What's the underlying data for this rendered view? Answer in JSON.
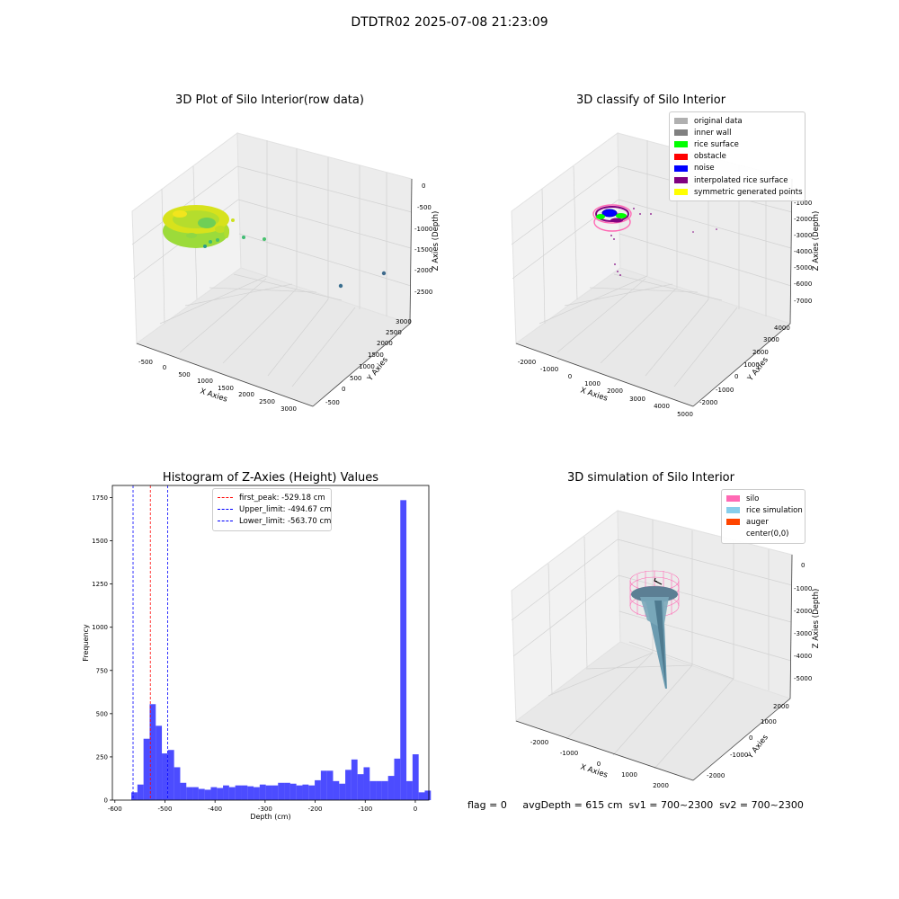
{
  "suptitle": "DTDTR02 2025-07-08 21:23:09",
  "panel1": {
    "title": "3D Plot of Silo Interior(row data)",
    "xlabel": "X Axies",
    "ylabel": "Y Axies",
    "zlabel": "Z Axies (Depth)",
    "xticks": [
      "-500",
      "0",
      "500",
      "1000",
      "1500",
      "2000",
      "2500",
      "3000"
    ],
    "yticks": [
      "-500",
      "0",
      "500",
      "1000",
      "1500",
      "2000",
      "2500",
      "3000"
    ],
    "zticks": [
      "0",
      "-500",
      "-1000",
      "-1500",
      "-2000",
      "-2500"
    ]
  },
  "panel2": {
    "title": "3D classify of Silo Interior",
    "xlabel": "X Axies",
    "ylabel": "Y Axies",
    "zlabel": "Z Axies (Depth)",
    "xticks": [
      "-2000",
      "-1000",
      "0",
      "1000",
      "2000",
      "3000",
      "4000",
      "5000"
    ],
    "yticks": [
      "-2000",
      "-1000",
      "0",
      "1000",
      "2000",
      "3000",
      "4000"
    ],
    "zticks": [
      "-1000",
      "-2000",
      "-3000",
      "-4000",
      "-5000",
      "-6000",
      "-7000"
    ],
    "legend": [
      {
        "label": "original data",
        "color": "#b0b0b0"
      },
      {
        "label": "inner wall",
        "color": "#808080"
      },
      {
        "label": "rice surface",
        "color": "#00ff00"
      },
      {
        "label": "obstacle",
        "color": "#ff0000"
      },
      {
        "label": "noise",
        "color": "#0000ff"
      },
      {
        "label": "interpolated rice surface",
        "color": "#800080"
      },
      {
        "label": "symmetric generated points",
        "color": "#ffff00"
      }
    ]
  },
  "panel3": {
    "title": "Histogram of Z-Axies (Height) Values",
    "xlabel": "Depth (cm)",
    "ylabel": "Frequency",
    "legend": [
      {
        "label": "first_peak: -529.18 cm",
        "color": "#ff0000"
      },
      {
        "label": "Upper_limit: -494.67 cm",
        "color": "#0000ff"
      },
      {
        "label": "Lower_limit: -563.70 cm",
        "color": "#0000ff"
      }
    ]
  },
  "panel4": {
    "title": "3D simulation of Silo Interior",
    "xlabel": "X Axies",
    "ylabel": "Y Axies",
    "zlabel": "Z Axies (Depth)",
    "xticks": [
      "-2000",
      "-1000",
      "0",
      "1000",
      "2000"
    ],
    "yticks": [
      "-2000",
      "-1000",
      "0",
      "1000",
      "2000"
    ],
    "zticks": [
      "0",
      "-1000",
      "-2000",
      "-3000",
      "-4000",
      "-5000"
    ],
    "legend": [
      {
        "label": "silo",
        "color": "#ff69b4"
      },
      {
        "label": "rice simulation",
        "color": "#87ceeb"
      },
      {
        "label": "auger",
        "color": "#ff4500"
      },
      {
        "label": "center(0,0)",
        "color": "#ffffff"
      }
    ]
  },
  "footer": "flag = 0     avgDepth = 615 cm  sv1 = 700~2300  sv2 = 700~2300",
  "chart_data": {
    "type": "bar",
    "title": "Histogram of Z-Axies (Height) Values",
    "xlabel": "Depth (cm)",
    "ylabel": "Frequency",
    "xlim": [
      -605,
      27
    ],
    "ylim": [
      0,
      1820
    ],
    "xticks": [
      -600,
      -500,
      -400,
      -300,
      -200,
      -100,
      0
    ],
    "yticks": [
      0,
      250,
      500,
      750,
      1000,
      1250,
      1500,
      1750
    ],
    "bin_start": -567.2,
    "bin_width": 12.21,
    "values": [
      45,
      90,
      355,
      555,
      430,
      270,
      290,
      190,
      100,
      75,
      75,
      65,
      60,
      75,
      70,
      85,
      75,
      85,
      85,
      80,
      75,
      90,
      85,
      85,
      100,
      100,
      95,
      85,
      90,
      85,
      115,
      170,
      170,
      110,
      95,
      175,
      235,
      150,
      190,
      110,
      110,
      110,
      140,
      240,
      1735,
      110,
      265,
      45,
      55
    ],
    "color": "#0000ff",
    "vlines": [
      {
        "x": -529.18,
        "label": "first_peak: -529.18 cm",
        "color": "#ff0000"
      },
      {
        "x": -494.67,
        "label": "Upper_limit: -494.67 cm",
        "color": "#0000ff"
      },
      {
        "x": -563.7,
        "label": "Lower_limit: -563.70 cm",
        "color": "#0000ff"
      }
    ]
  }
}
